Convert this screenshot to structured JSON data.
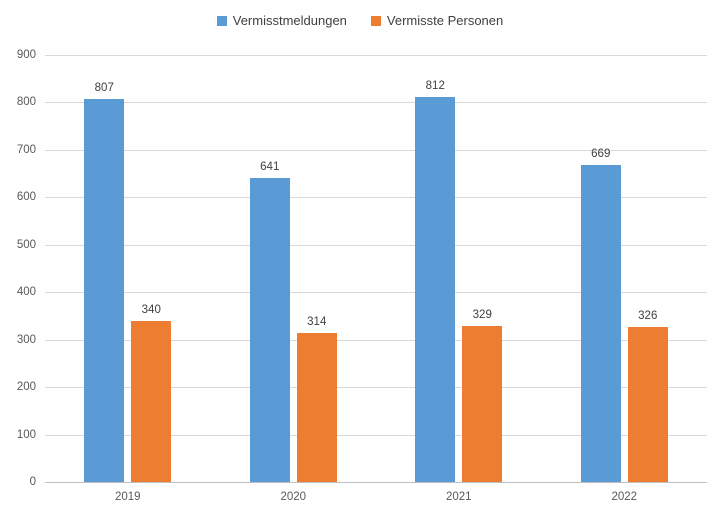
{
  "legend": {
    "items": [
      {
        "label": "Vermisstmeldungen",
        "color": "#5B9BD5"
      },
      {
        "label": "Vermisste Personen",
        "color": "#ED7D31"
      }
    ]
  },
  "chart_data": {
    "type": "bar",
    "title": "",
    "categories": [
      "2019",
      "2020",
      "2021",
      "2022"
    ],
    "series": [
      {
        "name": "Vermisstmeldungen",
        "color": "#5B9BD5",
        "values": [
          807,
          641,
          812,
          669
        ]
      },
      {
        "name": "Vermisste Personen",
        "color": "#ED7D31",
        "values": [
          340,
          314,
          329,
          326
        ]
      }
    ],
    "ylabel": "",
    "xlabel": "",
    "ylim": [
      0,
      900
    ],
    "ytick_step": 100,
    "grid": true,
    "legend_position": "top",
    "data_labels": true
  },
  "colors": {
    "gridline": "#d9d9d9",
    "axis_line": "#bfbfbf",
    "tick_text": "#595959",
    "data_label_text": "#404040",
    "legend_text": "#404040",
    "background": "#ffffff"
  }
}
